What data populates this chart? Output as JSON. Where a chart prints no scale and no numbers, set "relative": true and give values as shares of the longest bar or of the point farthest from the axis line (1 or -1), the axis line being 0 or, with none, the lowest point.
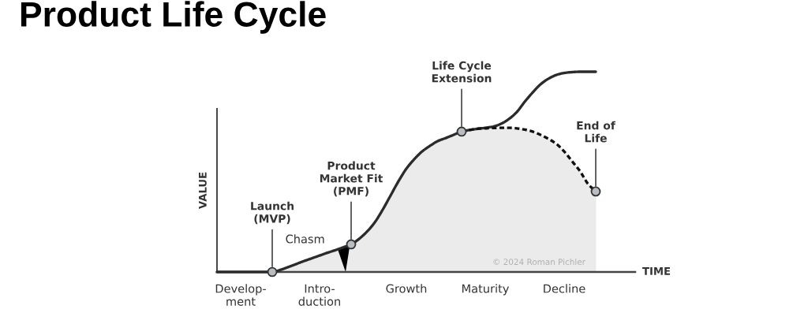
{
  "chart_data": {
    "type": "line",
    "title": "Product Life Cycle",
    "xlabel": "TIME",
    "ylabel": "VALUE",
    "relative": true,
    "categories": [
      null,
      null,
      null,
      "Develop-\nment",
      null,
      null,
      null,
      null,
      null,
      null,
      null,
      null,
      null,
      "Intro-\nduction",
      null,
      null,
      null,
      null,
      null,
      null,
      null,
      null,
      null,
      null,
      "Growth",
      null,
      null,
      null,
      null,
      null,
      null,
      null,
      null,
      null,
      "Maturity",
      null,
      null,
      null,
      null,
      null,
      null,
      null,
      null,
      null,
      "Decline",
      null,
      null,
      null,
      null,
      null,
      null,
      null,
      null,
      null
    ],
    "series": [
      {
        "type": "area",
        "color": "#ebebeb",
        "values": [
          0,
          0,
          0,
          0,
          0,
          0,
          0,
          0,
          0.01,
          0.024,
          0.039,
          0.054,
          0.068,
          0.082,
          0.096,
          0.109,
          0.123,
          0.138,
          0.165,
          0.201,
          0.248,
          0.311,
          0.382,
          0.453,
          0.516,
          0.563,
          0.602,
          0.63,
          0.654,
          0.669,
          0.685,
          0.701,
          null,
          null,
          null,
          null,
          null,
          null,
          null,
          null,
          null,
          null,
          null,
          null,
          null,
          null,
          null,
          null,
          null,
          null,
          null,
          null,
          null,
          null
        ]
      },
      {
        "color": "#2b2b2b",
        "line_style": "solid",
        "values": [
          0,
          0,
          0,
          0,
          0,
          0,
          0,
          0,
          0.01,
          0.024,
          0.039,
          0.054,
          0.068,
          0.082,
          0.096,
          0.109,
          0.123,
          0.138,
          0.165,
          0.201,
          0.248,
          0.311,
          0.382,
          0.453,
          0.516,
          0.563,
          0.602,
          0.63,
          0.654,
          0.669,
          0.685,
          0.701,
          0.709,
          0.715,
          0.72,
          0.726,
          0.74,
          0.764,
          0.799,
          0.85,
          0.896,
          0.937,
          0.965,
          0.984,
          0.994,
          0.998,
          1,
          1,
          1,
          null,
          null,
          null,
          null,
          null
        ]
      },
      {
        "type": "area",
        "color": "#ebebeb",
        "line_style": "dotted",
        "values": [
          null,
          null,
          null,
          null,
          null,
          null,
          null,
          null,
          null,
          null,
          null,
          null,
          null,
          null,
          null,
          null,
          null,
          null,
          null,
          null,
          null,
          null,
          null,
          null,
          null,
          null,
          null,
          null,
          null,
          null,
          null,
          0.701,
          0.709,
          0.715,
          0.717,
          0.719,
          0.72,
          0.72,
          0.717,
          0.711,
          0.701,
          0.685,
          0.665,
          0.64,
          0.602,
          0.553,
          0.504,
          0.441,
          0.402,
          null,
          null,
          null,
          null,
          null
        ]
      },
      {
        "type": "scatter",
        "color": "#b9bdc1",
        "marker": "circle",
        "values": [
          null,
          null,
          null,
          null,
          null,
          null,
          null,
          0,
          null,
          null,
          null,
          null,
          null,
          null,
          null,
          null,
          null,
          0.138,
          null,
          null,
          null,
          null,
          null,
          null,
          null,
          null,
          null,
          null,
          null,
          null,
          null,
          0.701,
          null,
          null,
          null,
          null,
          null,
          null,
          null,
          null,
          null,
          null,
          null,
          null,
          null,
          null,
          null,
          null,
          0.402,
          null,
          null,
          null,
          null,
          null
        ]
      }
    ],
    "annotations": [
      {
        "text": "Launch\n(MVP)",
        "y": 0
      },
      {
        "text": "Product\nMarket Fit\n(PMF)",
        "y": 0.138
      },
      {
        "text": "Life Cycle\nExtension",
        "y": 0.701
      },
      {
        "text": "End of\nLife",
        "y": 0.402
      },
      "Chasm",
      "© 2024 Roman Pichler"
    ]
  }
}
